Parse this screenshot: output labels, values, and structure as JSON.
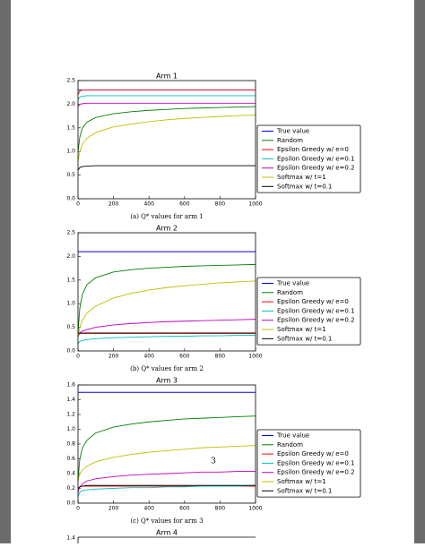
{
  "page_number": "3",
  "chart_data": [
    {
      "type": "line",
      "title": "Arm 1",
      "caption": "(a) Q* values for arm 1",
      "x": [
        0,
        10,
        25,
        50,
        100,
        200,
        300,
        400,
        500,
        600,
        700,
        800,
        900,
        1000
      ],
      "xlim": [
        0,
        1000
      ],
      "xticks": [
        0,
        200,
        400,
        600,
        800,
        1000
      ],
      "ylim": [
        0,
        2.5
      ],
      "yticks": [
        {
          "value": 0,
          "label": "0.0"
        },
        0.5,
        {
          "value": 1,
          "label": "1.0"
        },
        1.5,
        {
          "value": 2,
          "label": "2.0"
        },
        2.5
      ],
      "series": [
        {
          "name": "True value",
          "color": "#0000ff",
          "values": [
            2.3,
            2.3,
            2.3,
            2.3,
            2.3,
            2.3,
            2.3,
            2.3,
            2.3,
            2.3,
            2.3,
            2.3,
            2.3,
            2.3
          ]
        },
        {
          "name": "Random",
          "color": "#008000",
          "values": [
            1.0,
            1.3,
            1.5,
            1.62,
            1.72,
            1.8,
            1.84,
            1.87,
            1.89,
            1.91,
            1.92,
            1.93,
            1.94,
            1.95
          ]
        },
        {
          "name": "Epsilon Greedy w/ e=0",
          "color": "#ff0000",
          "values": [
            2.2,
            2.28,
            2.3,
            2.3,
            2.3,
            2.3,
            2.3,
            2.3,
            2.3,
            2.3,
            2.3,
            2.3,
            2.3,
            2.3
          ]
        },
        {
          "name": "Epsilon Greedy w/ e=0.1",
          "color": "#00bfbf",
          "values": [
            2.1,
            2.15,
            2.17,
            2.18,
            2.18,
            2.18,
            2.18,
            2.18,
            2.18,
            2.18,
            2.18,
            2.18,
            2.18,
            2.18
          ]
        },
        {
          "name": "Epsilon Greedy w/ e=0.2",
          "color": "#bf00bf",
          "values": [
            1.95,
            2.0,
            2.01,
            2.02,
            2.02,
            2.02,
            2.02,
            2.02,
            2.02,
            2.02,
            2.02,
            2.02,
            2.02,
            2.02
          ]
        },
        {
          "name": "Softmax w/ t=1",
          "color": "#bfbf00",
          "values": [
            0.8,
            1.0,
            1.15,
            1.28,
            1.4,
            1.52,
            1.58,
            1.63,
            1.67,
            1.7,
            1.72,
            1.74,
            1.76,
            1.77
          ]
        },
        {
          "name": "Softmax w/ t=0.1",
          "color": "#000000",
          "values": [
            0.6,
            0.66,
            0.68,
            0.69,
            0.7,
            0.7,
            0.7,
            0.7,
            0.7,
            0.7,
            0.7,
            0.7,
            0.7,
            0.7
          ]
        }
      ]
    },
    {
      "type": "line",
      "title": "Arm 2",
      "caption": "(b) Q* values for arm 2",
      "x": [
        0,
        10,
        25,
        50,
        100,
        200,
        300,
        400,
        500,
        600,
        700,
        800,
        900,
        1000
      ],
      "xlim": [
        0,
        1000
      ],
      "xticks": [
        0,
        200,
        400,
        600,
        800,
        1000
      ],
      "ylim": [
        0,
        2.5
      ],
      "yticks": [
        {
          "value": 0,
          "label": "0.0"
        },
        0.5,
        {
          "value": 1,
          "label": "1.0"
        },
        1.5,
        {
          "value": 2,
          "label": "2.0"
        },
        2.5
      ],
      "series": [
        {
          "name": "True value",
          "color": "#0000ff",
          "values": [
            2.1,
            2.1,
            2.1,
            2.1,
            2.1,
            2.1,
            2.1,
            2.1,
            2.1,
            2.1,
            2.1,
            2.1,
            2.1,
            2.1
          ]
        },
        {
          "name": "Random",
          "color": "#008000",
          "values": [
            0.4,
            0.9,
            1.2,
            1.4,
            1.55,
            1.67,
            1.72,
            1.75,
            1.77,
            1.79,
            1.8,
            1.81,
            1.82,
            1.83
          ]
        },
        {
          "name": "Epsilon Greedy w/ e=0",
          "color": "#ff0000",
          "values": [
            0.37,
            0.37,
            0.37,
            0.37,
            0.37,
            0.37,
            0.37,
            0.37,
            0.37,
            0.37,
            0.37,
            0.37,
            0.37,
            0.37
          ]
        },
        {
          "name": "Epsilon Greedy w/ e=0.1",
          "color": "#00bfbf",
          "values": [
            0.15,
            0.2,
            0.22,
            0.24,
            0.26,
            0.28,
            0.29,
            0.3,
            0.31,
            0.31,
            0.32,
            0.32,
            0.33,
            0.33
          ]
        },
        {
          "name": "Epsilon Greedy w/ e=0.2",
          "color": "#bf00bf",
          "values": [
            0.3,
            0.38,
            0.42,
            0.45,
            0.5,
            0.55,
            0.58,
            0.6,
            0.62,
            0.63,
            0.64,
            0.65,
            0.66,
            0.67
          ]
        },
        {
          "name": "Softmax w/ t=1",
          "color": "#bfbf00",
          "values": [
            0.3,
            0.5,
            0.65,
            0.8,
            0.95,
            1.12,
            1.22,
            1.29,
            1.34,
            1.38,
            1.41,
            1.44,
            1.46,
            1.48
          ]
        },
        {
          "name": "Softmax w/ t=0.1",
          "color": "#000000",
          "values": [
            0.38,
            0.38,
            0.38,
            0.38,
            0.38,
            0.38,
            0.38,
            0.38,
            0.38,
            0.38,
            0.38,
            0.38,
            0.38,
            0.38
          ]
        }
      ]
    },
    {
      "type": "line",
      "title": "Arm 3",
      "caption": "(c) Q* values for arm 3",
      "x": [
        0,
        10,
        25,
        50,
        100,
        200,
        300,
        400,
        500,
        600,
        700,
        800,
        900,
        1000
      ],
      "xlim": [
        0,
        1000
      ],
      "xticks": [
        0,
        200,
        400,
        600,
        800,
        1000
      ],
      "ylim": [
        0,
        1.6
      ],
      "yticks": [
        {
          "value": 0,
          "label": "0.0"
        },
        0.2,
        0.4,
        0.6,
        0.8,
        {
          "value": 1,
          "label": "1.0"
        },
        1.2,
        1.4,
        1.6
      ],
      "series": [
        {
          "name": "True value",
          "color": "#0000ff",
          "values": [
            1.5,
            1.5,
            1.5,
            1.5,
            1.5,
            1.5,
            1.5,
            1.5,
            1.5,
            1.5,
            1.5,
            1.5,
            1.5,
            1.5
          ]
        },
        {
          "name": "Random",
          "color": "#008000",
          "values": [
            0.3,
            0.6,
            0.75,
            0.85,
            0.95,
            1.03,
            1.07,
            1.1,
            1.12,
            1.14,
            1.15,
            1.16,
            1.17,
            1.18
          ]
        },
        {
          "name": "Epsilon Greedy w/ e=0",
          "color": "#ff0000",
          "values": [
            0.2,
            0.22,
            0.23,
            0.23,
            0.23,
            0.23,
            0.23,
            0.23,
            0.23,
            0.23,
            0.23,
            0.23,
            0.23,
            0.23
          ]
        },
        {
          "name": "Epsilon Greedy w/ e=0.1",
          "color": "#00bfbf",
          "values": [
            0.1,
            0.15,
            0.17,
            0.18,
            0.19,
            0.2,
            0.21,
            0.21,
            0.22,
            0.22,
            0.23,
            0.23,
            0.23,
            0.24
          ]
        },
        {
          "name": "Epsilon Greedy w/ e=0.2",
          "color": "#bf00bf",
          "values": [
            0.15,
            0.22,
            0.26,
            0.3,
            0.33,
            0.36,
            0.38,
            0.39,
            0.4,
            0.41,
            0.42,
            0.42,
            0.43,
            0.43
          ]
        },
        {
          "name": "Softmax w/ t=1",
          "color": "#bfbf00",
          "values": [
            0.3,
            0.4,
            0.45,
            0.5,
            0.56,
            0.62,
            0.66,
            0.69,
            0.71,
            0.73,
            0.75,
            0.76,
            0.77,
            0.78
          ]
        },
        {
          "name": "Softmax w/ t=0.1",
          "color": "#000000",
          "values": [
            0.2,
            0.22,
            0.23,
            0.24,
            0.24,
            0.24,
            0.24,
            0.24,
            0.24,
            0.24,
            0.24,
            0.24,
            0.24,
            0.24
          ]
        }
      ]
    },
    {
      "type": "line",
      "title": "Arm 4",
      "yticks": [
        1.4
      ]
    }
  ]
}
